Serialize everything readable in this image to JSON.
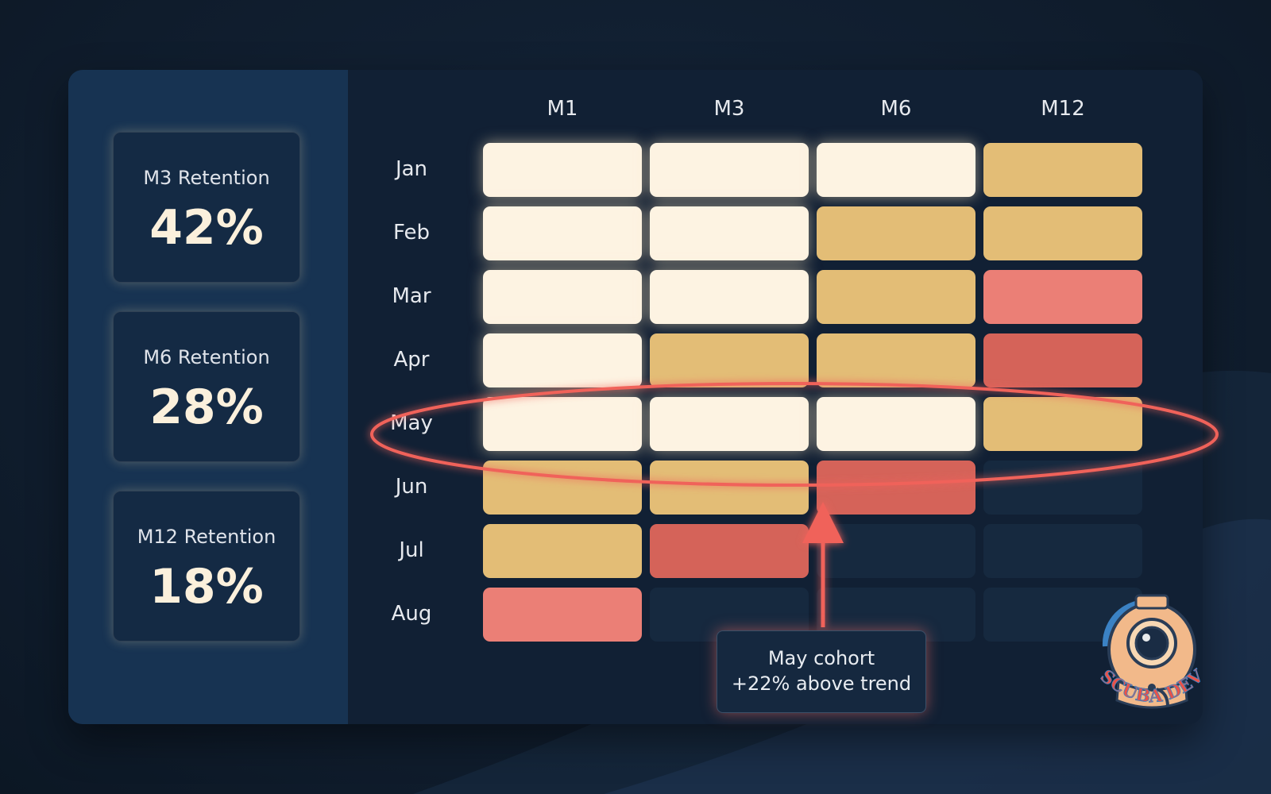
{
  "kpis": [
    {
      "label": "M3 Retention",
      "value": "42%"
    },
    {
      "label": "M6 Retention",
      "value": "28%"
    },
    {
      "label": "M12 Retention",
      "value": "18%"
    }
  ],
  "chart_data": {
    "type": "heatmap",
    "columns": [
      "M1",
      "M3",
      "M6",
      "M12"
    ],
    "rows": [
      "Jan",
      "Feb",
      "Mar",
      "Apr",
      "May",
      "Jun",
      "Jul",
      "Aug"
    ],
    "levels": [
      [
        "high",
        "high",
        "high",
        "mid"
      ],
      [
        "high",
        "high",
        "mid",
        "mid"
      ],
      [
        "high",
        "high",
        "mid",
        "low"
      ],
      [
        "high",
        "mid",
        "mid",
        "lowest"
      ],
      [
        "high",
        "high",
        "high",
        "mid"
      ],
      [
        "mid",
        "mid",
        "lowest",
        "none"
      ],
      [
        "mid",
        "lowest",
        "none",
        "none"
      ],
      [
        "low",
        "none",
        "none",
        "none"
      ]
    ],
    "level_colors": {
      "high": "#fdf3e2",
      "mid": "#e3bd76",
      "low": "#eb7f76",
      "lowest": "#d56359",
      "none": "#16293f"
    },
    "highlight_row": "May",
    "annotation": {
      "line1": "May cohort",
      "line2": "+22% above trend"
    }
  },
  "colors": {
    "background": "#0f1c2c",
    "sidebar": "#173352",
    "accent_highlight": "#f0625a"
  },
  "logo": {
    "text": "SCUBA DEV",
    "icon": "diving-helmet-icon"
  }
}
